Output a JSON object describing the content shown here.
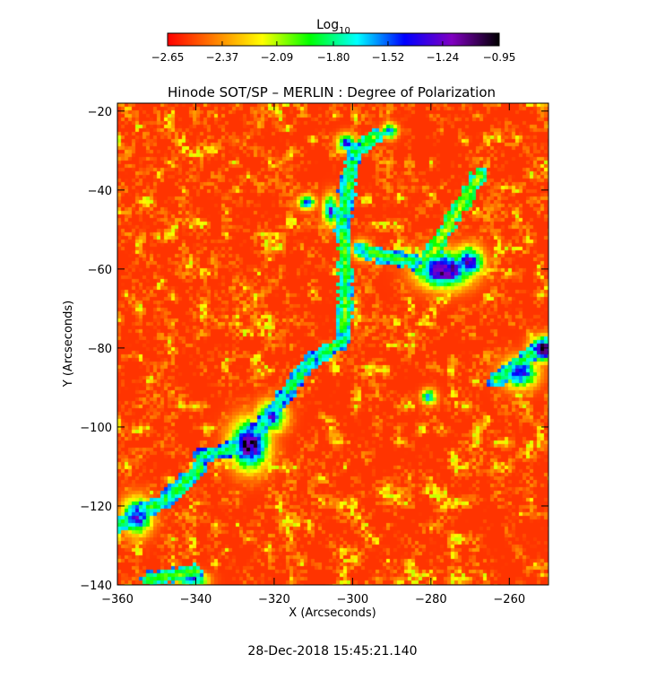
{
  "chart_data": {
    "type": "heatmap",
    "title": "Hinode SOT/SP – MERLIN : Degree of Polarization",
    "xlabel": "X (Arcseconds)",
    "ylabel": "Y (Arcseconds)",
    "xlim": [
      -360,
      -250
    ],
    "ylim": [
      -140,
      -18
    ],
    "x_ticks": [
      -360,
      -340,
      -320,
      -300,
      -280,
      -260
    ],
    "x_tick_labels": [
      "−360",
      "−340",
      "−320",
      "−300",
      "−280",
      "−260"
    ],
    "y_ticks": [
      -20,
      -40,
      -60,
      -80,
      -100,
      -120,
      -140
    ],
    "y_tick_labels": [
      "−20",
      "−40",
      "−60",
      "−80",
      "−100",
      "−120",
      "−140"
    ],
    "colorbar": {
      "label_base": "Log",
      "label_sub": "10",
      "range": [
        -2.65,
        -0.95
      ],
      "ticks": [
        -2.65,
        -2.37,
        -2.09,
        -1.8,
        -1.52,
        -1.24,
        -0.95
      ],
      "tick_labels": [
        "−2.65",
        "−2.37",
        "−2.09",
        "−1.80",
        "−1.52",
        "−1.24",
        "−0.95"
      ],
      "colormap": [
        "#ff0000",
        "#ff8000",
        "#ffff00",
        "#00ff00",
        "#00ffff",
        "#0000ff",
        "#8000c0",
        "#000000"
      ]
    },
    "background_level": -2.55,
    "active_regions": [
      {
        "x": -326.5,
        "y": -104,
        "peak": -1.0,
        "sx": 3.2,
        "sy": 4.0
      },
      {
        "x": -321,
        "y": -97,
        "peak": -1.35,
        "sx": 2.5,
        "sy": 2.5
      },
      {
        "x": -277,
        "y": -60,
        "peak": -1.05,
        "sx": 4.5,
        "sy": 3.0
      },
      {
        "x": -271,
        "y": -58,
        "peak": -1.2,
        "sx": 2.5,
        "sy": 2.5
      },
      {
        "x": -252,
        "y": -80,
        "peak": -1.0,
        "sx": 2.2,
        "sy": 2.0
      },
      {
        "x": -258,
        "y": -86,
        "peak": -1.35,
        "sx": 3.0,
        "sy": 2.5
      },
      {
        "x": -355,
        "y": -122,
        "peak": -1.3,
        "sx": 2.5,
        "sy": 3.0
      },
      {
        "x": -341,
        "y": -138,
        "peak": -1.4,
        "sx": 2.5,
        "sy": 1.2
      },
      {
        "x": -306,
        "y": -45,
        "peak": -1.4,
        "sx": 1.2,
        "sy": 2.5
      },
      {
        "x": -302,
        "y": -28,
        "peak": -1.4,
        "sx": 1.5,
        "sy": 1.5
      },
      {
        "x": -291,
        "y": -25,
        "peak": -1.5,
        "sx": 1.3,
        "sy": 1.3
      },
      {
        "x": -312,
        "y": -43,
        "peak": -1.5,
        "sx": 1.5,
        "sy": 1.2
      },
      {
        "x": -298,
        "y": -55,
        "peak": -1.5,
        "sx": 1.5,
        "sy": 1.5
      },
      {
        "x": -281,
        "y": -92,
        "peak": -1.6,
        "sx": 1.3,
        "sy": 1.3
      }
    ],
    "network_lanes": [
      {
        "x1": -339,
        "y1": -107,
        "x2": -327,
        "y2": -104,
        "level": -1.75
      },
      {
        "x1": -327,
        "y1": -104,
        "x2": -318,
        "y2": -92,
        "level": -1.75
      },
      {
        "x1": -318,
        "y1": -92,
        "x2": -311,
        "y2": -83,
        "level": -1.8
      },
      {
        "x1": -311,
        "y1": -83,
        "x2": -303,
        "y2": -78,
        "level": -1.85
      },
      {
        "x1": -303,
        "y1": -78,
        "x2": -302,
        "y2": -65,
        "level": -1.9
      },
      {
        "x1": -302,
        "y1": -65,
        "x2": -303,
        "y2": -48,
        "level": -1.9
      },
      {
        "x1": -303,
        "y1": -48,
        "x2": -300,
        "y2": -30,
        "level": -1.85
      },
      {
        "x1": -300,
        "y1": -30,
        "x2": -294,
        "y2": -26,
        "level": -1.9
      },
      {
        "x1": -298,
        "y1": -55,
        "x2": -285,
        "y2": -58,
        "level": -1.85
      },
      {
        "x1": -360,
        "y1": -124,
        "x2": -348,
        "y2": -118,
        "level": -1.85
      },
      {
        "x1": -348,
        "y1": -118,
        "x2": -339,
        "y2": -110,
        "level": -1.85
      },
      {
        "x1": -264,
        "y1": -88,
        "x2": -252,
        "y2": -79,
        "level": -1.85
      },
      {
        "x1": -283,
        "y1": -60,
        "x2": -268,
        "y2": -36,
        "level": -2.0
      },
      {
        "x1": -352,
        "y1": -138,
        "x2": -340,
        "y2": -136,
        "level": -1.9
      }
    ]
  },
  "timestamp": "28-Dec-2018 15:45:21.140"
}
